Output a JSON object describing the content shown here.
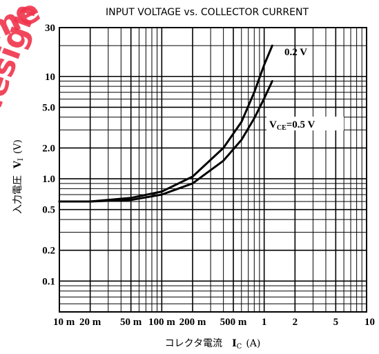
{
  "watermark": {
    "lines": [
      "me",
      "design"
    ],
    "color": "#f0344c"
  },
  "chart_data": {
    "type": "line",
    "title": "INPUT VOLTAGE vs. COLLECTOR CURRENT",
    "xlabel": "コレクタ電流 I_C (A)",
    "ylabel": "入力電圧 V_I (V)",
    "x_scale": "log",
    "y_scale": "log",
    "xlim": [
      0.01,
      10
    ],
    "ylim": [
      0.05,
      30
    ],
    "grid": true,
    "x_ticks": [
      {
        "v": 0.01,
        "label": "10 m"
      },
      {
        "v": 0.02,
        "label": "20 m"
      },
      {
        "v": 0.05,
        "label": "50 m"
      },
      {
        "v": 0.1,
        "label": "100 m"
      },
      {
        "v": 0.2,
        "label": "200 m"
      },
      {
        "v": 0.5,
        "label": "500 m"
      },
      {
        "v": 1,
        "label": "1"
      },
      {
        "v": 2,
        "label": "2"
      },
      {
        "v": 5,
        "label": "5"
      },
      {
        "v": 10,
        "label": "10"
      }
    ],
    "y_ticks": [
      {
        "v": 0.1,
        "label": "0.1"
      },
      {
        "v": 0.2,
        "label": "0.2"
      },
      {
        "v": 0.5,
        "label": "0.5"
      },
      {
        "v": 1,
        "label": "1.0"
      },
      {
        "v": 2,
        "label": "2.0"
      },
      {
        "v": 5,
        "label": "5.0"
      },
      {
        "v": 10,
        "label": "10"
      },
      {
        "v": 30,
        "label": "30"
      }
    ],
    "series": [
      {
        "name": "0.2 V",
        "x": [
          0.01,
          0.02,
          0.05,
          0.1,
          0.2,
          0.4,
          0.6,
          0.8,
          1.0,
          1.2
        ],
        "y": [
          0.6,
          0.6,
          0.65,
          0.75,
          1.05,
          2.0,
          3.6,
          7.0,
          13.0,
          20.0
        ]
      },
      {
        "name": "VCE=0.5 V",
        "x": [
          0.01,
          0.02,
          0.05,
          0.1,
          0.2,
          0.4,
          0.6,
          0.8,
          1.0,
          1.2
        ],
        "y": [
          0.6,
          0.6,
          0.62,
          0.7,
          0.9,
          1.5,
          2.4,
          3.9,
          6.1,
          9.0
        ]
      }
    ]
  },
  "text": {
    "title": "INPUT VOLTAGE vs. COLLECTOR CURRENT",
    "xlabel_jp": "コレクタ電流",
    "xlabel_sym": "I",
    "xlabel_sub": "C",
    "xlabel_unit": "(A)",
    "ylabel_jp": "入力電圧",
    "ylabel_sym": "V",
    "ylabel_sub": "I",
    "ylabel_unit": "(V)",
    "series1_label": "0.2 V",
    "series2_label_v": "V",
    "series2_label_sub": "CE",
    "series2_label_rest": "=0.5 V"
  }
}
